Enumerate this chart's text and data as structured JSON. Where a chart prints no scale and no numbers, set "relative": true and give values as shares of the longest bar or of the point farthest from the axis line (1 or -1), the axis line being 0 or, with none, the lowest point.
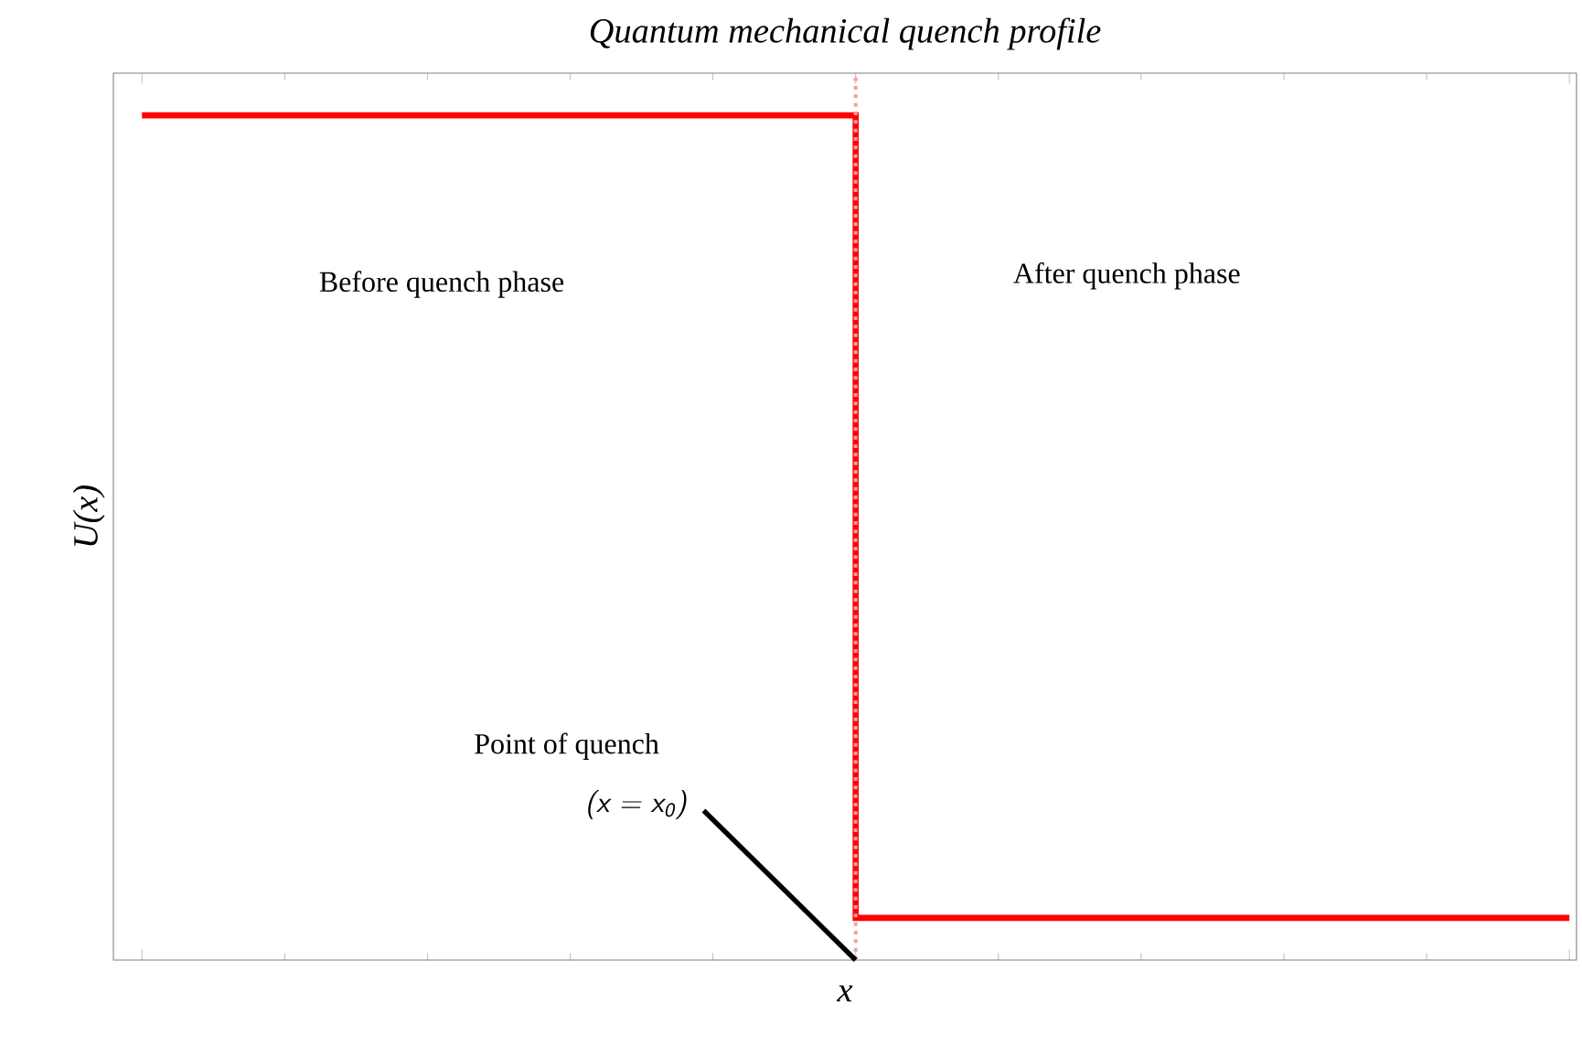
{
  "chart_data": {
    "type": "step",
    "title": "Quantum mechanical quench profile",
    "xlabel": "x",
    "ylabel": "U(x)",
    "relative": true,
    "categories": [
      null,
      null,
      null
    ],
    "series": [
      {
        "color": "#ff0000",
        "values": [
          1,
          0.05,
          0.05
        ]
      }
    ],
    "annotations": [
      "Before quench phase",
      "After quench phase",
      "Point of quench",
      "(x = x$_{0}$)"
    ]
  }
}
